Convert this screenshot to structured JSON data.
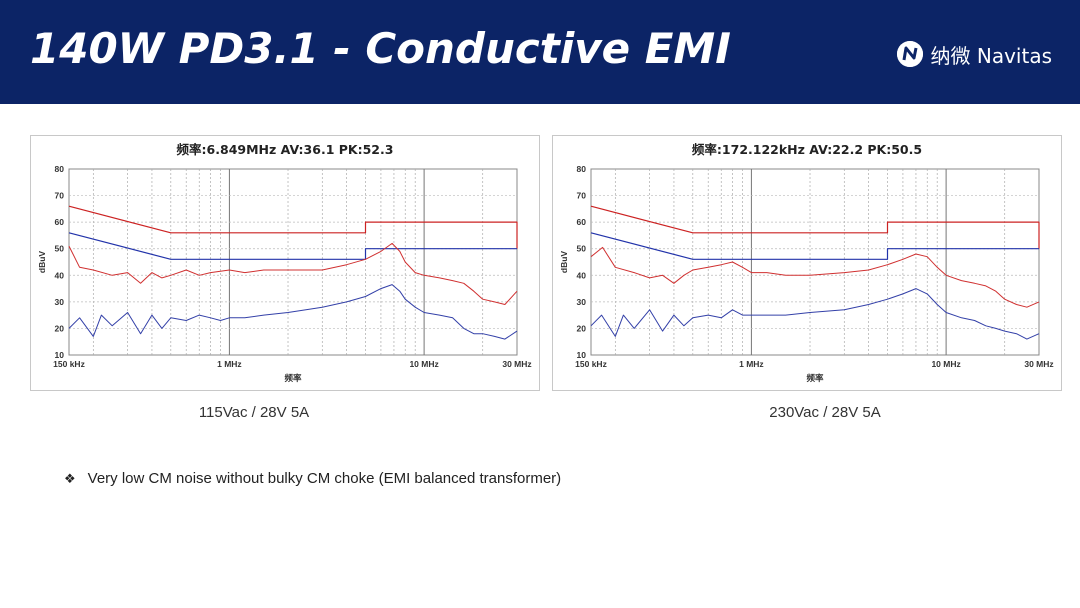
{
  "slide": {
    "title": "140W PD3.1 - Conductive EMI",
    "logo_text": "纳微 Navitas",
    "logo_icon": "navitas-logo-icon",
    "bullet": "Very low CM noise without bulky CM choke (EMI balanced transformer)",
    "bullet_icon": "diamond-bullet-icon"
  },
  "colors": {
    "header": "#0c2466",
    "limit_qp": "#cc2222",
    "limit_av": "#2233aa",
    "trace_qp": "#d03030",
    "trace_av": "#3340a8"
  },
  "chart_data": [
    {
      "type": "line",
      "title": "频率:6.849MHz  AV:36.1  PK:52.3",
      "caption": "115Vac / 28V 5A",
      "xlabel": "频率",
      "ylabel": "dBuV",
      "x_scale": "log",
      "xlim_mhz": [
        0.15,
        30
      ],
      "ylim": [
        10,
        80
      ],
      "yticks": [
        "80",
        "70",
        "60",
        "50",
        "40",
        "30",
        "20",
        "10"
      ],
      "xticks": [
        "150 kHz",
        "1 MHz",
        "10 MHz",
        "30 MHz"
      ],
      "grid": true,
      "series": [
        {
          "color": "#cc2222",
          "points": [
            [
              0.15,
              66
            ],
            [
              0.5,
              56
            ],
            [
              5,
              56
            ],
            [
              5,
              60
            ],
            [
              30,
              60
            ],
            [
              30,
              50
            ]
          ]
        },
        {
          "color": "#2233aa",
          "points": [
            [
              0.15,
              56
            ],
            [
              0.5,
              46
            ],
            [
              5,
              46
            ],
            [
              5,
              50
            ],
            [
              30,
              50
            ]
          ]
        },
        {
          "color": "#d03030",
          "points": [
            [
              0.15,
              51
            ],
            [
              0.17,
              43
            ],
            [
              0.2,
              42
            ],
            [
              0.25,
              40
            ],
            [
              0.3,
              41
            ],
            [
              0.35,
              37
            ],
            [
              0.4,
              41
            ],
            [
              0.45,
              39
            ],
            [
              0.5,
              40
            ],
            [
              0.6,
              42
            ],
            [
              0.7,
              40
            ],
            [
              0.8,
              41
            ],
            [
              1,
              42
            ],
            [
              1.2,
              41
            ],
            [
              1.5,
              42
            ],
            [
              2,
              42
            ],
            [
              3,
              42
            ],
            [
              4,
              44
            ],
            [
              5,
              46
            ],
            [
              6,
              49
            ],
            [
              6.85,
              52
            ],
            [
              7.5,
              49
            ],
            [
              8,
              45
            ],
            [
              9,
              41
            ],
            [
              10,
              40
            ],
            [
              12,
              39
            ],
            [
              14,
              38
            ],
            [
              16,
              37
            ],
            [
              18,
              34
            ],
            [
              20,
              31
            ],
            [
              23,
              30
            ],
            [
              26,
              29
            ],
            [
              30,
              34
            ]
          ]
        },
        {
          "color": "#3340a8",
          "points": [
            [
              0.15,
              20
            ],
            [
              0.17,
              24
            ],
            [
              0.2,
              17
            ],
            [
              0.22,
              25
            ],
            [
              0.25,
              21
            ],
            [
              0.3,
              26
            ],
            [
              0.35,
              18
            ],
            [
              0.4,
              25
            ],
            [
              0.45,
              20
            ],
            [
              0.5,
              24
            ],
            [
              0.6,
              23
            ],
            [
              0.7,
              25
            ],
            [
              0.8,
              24
            ],
            [
              0.9,
              23
            ],
            [
              1,
              24
            ],
            [
              1.2,
              24
            ],
            [
              1.5,
              25
            ],
            [
              2,
              26
            ],
            [
              3,
              28
            ],
            [
              4,
              30
            ],
            [
              5,
              32
            ],
            [
              6,
              35
            ],
            [
              6.85,
              36.5
            ],
            [
              7.5,
              34
            ],
            [
              8,
              31
            ],
            [
              9,
              28
            ],
            [
              10,
              26
            ],
            [
              12,
              25
            ],
            [
              14,
              24
            ],
            [
              16,
              20
            ],
            [
              18,
              18
            ],
            [
              20,
              18
            ],
            [
              23,
              17
            ],
            [
              26,
              16
            ],
            [
              30,
              19
            ]
          ]
        }
      ]
    },
    {
      "type": "line",
      "title": "频率:172.122kHz  AV:22.2  PK:50.5",
      "caption": "230Vac / 28V 5A",
      "xlabel": "频率",
      "ylabel": "dBuV",
      "x_scale": "log",
      "xlim_mhz": [
        0.15,
        30
      ],
      "ylim": [
        10,
        80
      ],
      "yticks": [
        "80",
        "70",
        "60",
        "50",
        "40",
        "30",
        "20",
        "10"
      ],
      "xticks": [
        "150 kHz",
        "1 MHz",
        "10 MHz",
        "30 MHz"
      ],
      "grid": true,
      "series": [
        {
          "color": "#cc2222",
          "points": [
            [
              0.15,
              66
            ],
            [
              0.5,
              56
            ],
            [
              5,
              56
            ],
            [
              5,
              60
            ],
            [
              30,
              60
            ],
            [
              30,
              50
            ]
          ]
        },
        {
          "color": "#2233aa",
          "points": [
            [
              0.15,
              56
            ],
            [
              0.5,
              46
            ],
            [
              5,
              46
            ],
            [
              5,
              50
            ],
            [
              30,
              50
            ]
          ]
        },
        {
          "color": "#d03030",
          "points": [
            [
              0.15,
              47
            ],
            [
              0.172,
              50.5
            ],
            [
              0.2,
              43
            ],
            [
              0.25,
              41
            ],
            [
              0.3,
              39
            ],
            [
              0.35,
              40
            ],
            [
              0.4,
              37
            ],
            [
              0.45,
              40
            ],
            [
              0.5,
              42
            ],
            [
              0.6,
              43
            ],
            [
              0.7,
              44
            ],
            [
              0.8,
              45
            ],
            [
              0.9,
              43
            ],
            [
              1,
              41
            ],
            [
              1.2,
              41
            ],
            [
              1.5,
              40
            ],
            [
              2,
              40
            ],
            [
              3,
              41
            ],
            [
              4,
              42
            ],
            [
              5,
              44
            ],
            [
              6,
              46
            ],
            [
              7,
              48
            ],
            [
              8,
              47
            ],
            [
              9,
              43
            ],
            [
              10,
              40
            ],
            [
              12,
              38
            ],
            [
              14,
              37
            ],
            [
              16,
              36
            ],
            [
              18,
              34
            ],
            [
              20,
              31
            ],
            [
              23,
              29
            ],
            [
              26,
              28
            ],
            [
              30,
              30
            ]
          ]
        },
        {
          "color": "#3340a8",
          "points": [
            [
              0.15,
              21
            ],
            [
              0.17,
              25
            ],
            [
              0.2,
              17
            ],
            [
              0.22,
              25
            ],
            [
              0.25,
              20
            ],
            [
              0.3,
              27
            ],
            [
              0.35,
              19
            ],
            [
              0.4,
              25
            ],
            [
              0.45,
              21
            ],
            [
              0.5,
              24
            ],
            [
              0.6,
              25
            ],
            [
              0.7,
              24
            ],
            [
              0.8,
              27
            ],
            [
              0.9,
              25
            ],
            [
              1,
              25
            ],
            [
              1.2,
              25
            ],
            [
              1.5,
              25
            ],
            [
              2,
              26
            ],
            [
              3,
              27
            ],
            [
              4,
              29
            ],
            [
              5,
              31
            ],
            [
              6,
              33
            ],
            [
              7,
              35
            ],
            [
              8,
              33
            ],
            [
              9,
              29
            ],
            [
              10,
              26
            ],
            [
              12,
              24
            ],
            [
              14,
              23
            ],
            [
              16,
              21
            ],
            [
              18,
              20
            ],
            [
              20,
              19
            ],
            [
              23,
              18
            ],
            [
              26,
              16
            ],
            [
              30,
              18
            ]
          ]
        }
      ]
    }
  ]
}
